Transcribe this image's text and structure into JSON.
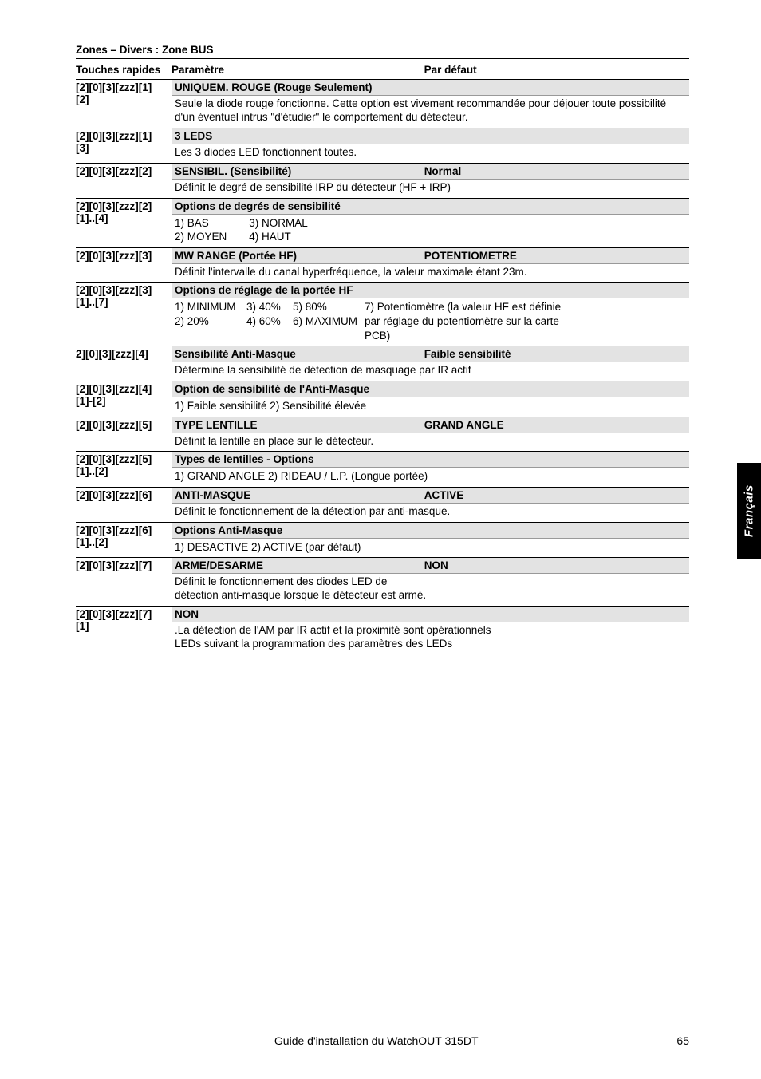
{
  "section_title": "Zones – Divers : Zone BUS",
  "headers": {
    "shortcuts": "Touches rapides",
    "param": "Paramètre",
    "def": "Par défaut"
  },
  "rows": [
    {
      "sc": "[2][0][3][zzz][1][2]",
      "pname": "UNIQUEM. ROUGE (Rouge Seulement)",
      "pdef": "",
      "desc": "Seule la diode rouge fonctionne. Cette option est vivement recommandée pour déjouer toute possibilité d'un éventuel intrus \"d'étudier\" le comportement du détecteur."
    },
    {
      "sc": "[2][0][3][zzz][1][3]",
      "pname": "3 LEDS",
      "pdef": "",
      "desc": "Les 3 diodes LED fonctionnent toutes."
    },
    {
      "sc": "[2][0][3][zzz][2]",
      "pname": "SENSIBIL. (Sensibilité)",
      "pdef": "Normal",
      "desc": "Définit le degré de sensibilité IRP du détecteur (HF + IRP)"
    },
    {
      "sc": "[2][0][3][zzz][2][1]..[4]",
      "pname": "Options de degrés de sensibilité",
      "pdef": "",
      "opts_cols": [
        [
          "1) BAS",
          "2) MOYEN"
        ],
        [
          "3) NORMAL",
          "4) HAUT"
        ]
      ]
    },
    {
      "sc": "[2][0][3][zzz][3]",
      "pname": "MW RANGE (Portée HF)",
      "pdef": "POTENTIOMETRE",
      "desc": "Définit l'intervalle du canal hyperfréquence, la valeur maximale étant 23m."
    },
    {
      "sc": "[2][0][3][zzz][3][1]..[7]",
      "pname": "Options de réglage de la portée HF",
      "pdef": "",
      "opts_mw": {
        "c1": [
          "1) MINIMUM",
          "2) 20%"
        ],
        "c2": [
          "3) 40%",
          "4) 60%"
        ],
        "c3": [
          "5) 80%",
          "6) MAXIMUM"
        ],
        "c4": [
          "7) Potentiomètre (la valeur HF est définie",
          "par réglage du potentiomètre sur la carte",
          "PCB)"
        ]
      }
    },
    {
      "sc": "2][0][3][zzz][4]",
      "pname": "Sensibilité Anti-Masque",
      "pdef": "Faible sensibilité",
      "desc": "Détermine la sensibilité de détection de masquage par IR actif"
    },
    {
      "sc": "[2][0][3][zzz][4][1]-[2]",
      "pname": "Option de sensibilité de l'Anti-Masque",
      "pdef": "",
      "opts_line": "1) Faible sensibilité   2) Sensibilité élevée"
    },
    {
      "sc": "[2][0][3][zzz][5]",
      "pname": "TYPE LENTILLE",
      "pdef": "GRAND ANGLE",
      "desc": "Définit la lentille en place sur le détecteur."
    },
    {
      "sc": "[2][0][3][zzz][5][1]..[2]",
      "pname": "Types de lentilles - Options",
      "pdef": "",
      "opts_line": "1) GRAND ANGLE   2) RIDEAU / L.P. (Longue portée)"
    },
    {
      "sc": "[2][0][3][zzz][6]",
      "pname": "ANTI-MASQUE",
      "pdef": "ACTIVE",
      "desc": "Définit le fonctionnement de la détection par anti-masque."
    },
    {
      "sc": "[2][0][3][zzz][6][1]..[2]",
      "pname": "Options Anti-Masque",
      "pdef": "",
      "opts_line": "1) DESACTIVE   2) ACTIVE (par défaut)"
    },
    {
      "sc": "[2][0][3][zzz][7]",
      "pname": "ARME/DESARME",
      "pdef": "NON",
      "desc": "Définit le fonctionnement des diodes LED de\ndétection anti-masque lorsque le détecteur est armé."
    },
    {
      "sc": "[2][0][3][zzz][7][1]",
      "pname": "NON",
      "pdef": "",
      "desc": ".La détection de l'AM par IR actif et la proximité  sont opérationnels\nLEDs suivant la programmation des paramètres des LEDs"
    }
  ],
  "tab_label": "Français",
  "footer_center": "Guide d'installation du WatchOUT 315DT",
  "footer_page": "65"
}
